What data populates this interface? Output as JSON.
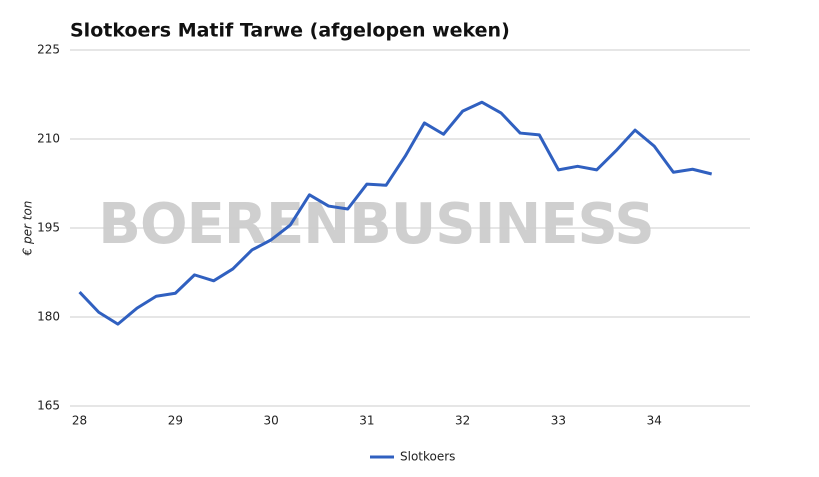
{
  "chart_data": {
    "type": "line",
    "title": "Slotkoers Matif Tarwe (afgelopen weken)",
    "y_label": "€ per ton",
    "watermark": "BOERENBUSINESS",
    "x": [
      28.0,
      28.2,
      28.4,
      28.6,
      28.8,
      29.0,
      29.2,
      29.4,
      29.6,
      29.8,
      30.0,
      30.2,
      30.4,
      30.6,
      30.8,
      31.0,
      31.2,
      31.4,
      31.6,
      31.8,
      32.0,
      32.2,
      32.4,
      32.6,
      32.8,
      33.0,
      33.2,
      33.4,
      33.6,
      33.8,
      34.0,
      34.2,
      34.4,
      34.6
    ],
    "series": [
      {
        "name": "Slotkoers",
        "color": "#3060c0",
        "values": [
          184.2,
          180.8,
          178.8,
          181.5,
          183.5,
          184.0,
          187.1,
          186.1,
          188.1,
          191.3,
          193.0,
          195.5,
          200.6,
          198.7,
          198.2,
          202.4,
          202.2,
          207.1,
          212.7,
          210.8,
          214.7,
          216.2,
          214.4,
          211.0,
          210.7,
          204.8,
          205.4,
          204.8,
          208.0,
          211.5,
          208.8,
          204.4,
          204.9,
          204.1
        ]
      }
    ],
    "xlim": [
      27.9,
      35
    ],
    "xticks": [
      28,
      29,
      30,
      31,
      32,
      33,
      34
    ],
    "ylim": [
      165,
      225
    ],
    "yticks": [
      165,
      180,
      195,
      210,
      225
    ],
    "grid": true,
    "legend": "bottom"
  }
}
